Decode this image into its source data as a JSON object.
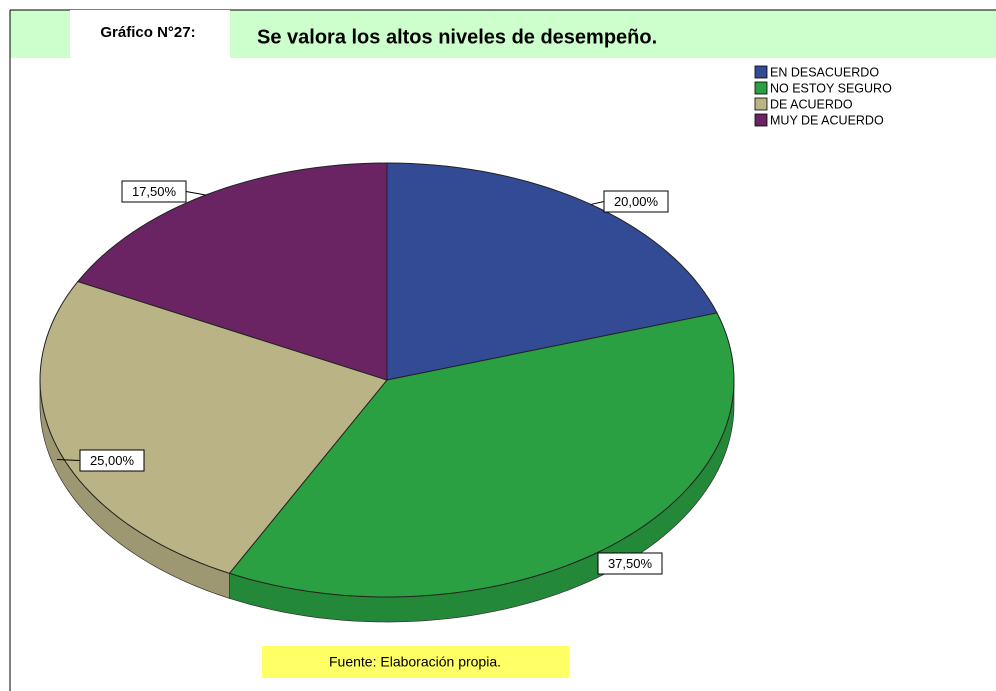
{
  "chart_data": {
    "type": "pie",
    "figure_label": "Gráfico N°27:",
    "title": "Se valora los altos niveles de desempeño.",
    "categories": [
      "EN DESACUERDO",
      "NO ESTOY SEGURO",
      "DE ACUERDO",
      "MUY DE ACUERDO"
    ],
    "values": [
      20,
      37.5,
      25,
      17.5
    ],
    "value_labels": [
      "20,00%",
      "37,50%",
      "25,00%",
      "17,50%"
    ],
    "colors": [
      "#334b94",
      "#2aa043",
      "#b9b385",
      "#6b2463"
    ],
    "legend": "upper right",
    "source": "Fuente: Elaboración propia."
  }
}
